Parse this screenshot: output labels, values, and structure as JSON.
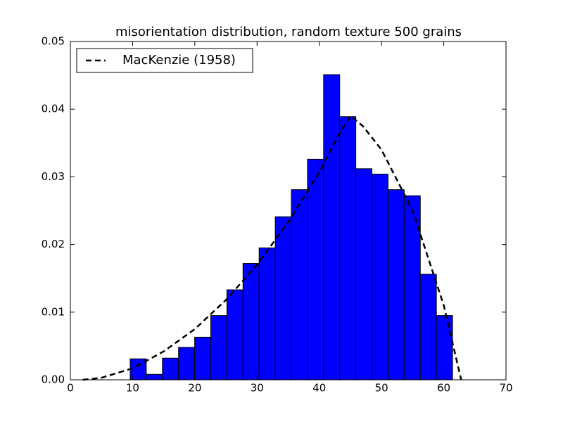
{
  "chart_data": {
    "type": "histogram",
    "title": "misorientation distribution, random texture 500 grains",
    "bins": [
      9.61,
      12.2,
      14.79,
      17.38,
      19.97,
      22.56,
      25.15,
      27.74,
      30.33,
      32.92,
      35.51,
      38.1,
      40.69,
      43.28,
      45.87,
      48.46,
      51.05,
      53.64,
      56.23,
      58.82,
      61.41
    ],
    "values": [
      0.0031,
      0.0008,
      0.0032,
      0.0048,
      0.0063,
      0.0095,
      0.0133,
      0.0172,
      0.0195,
      0.0241,
      0.0281,
      0.0326,
      0.0451,
      0.0389,
      0.0312,
      0.0304,
      0.0281,
      0.0272,
      0.0156,
      0.0095
    ],
    "color": "#0000ff",
    "lines": [
      {
        "name": "MacKenzie (1958)",
        "color": "#000000",
        "dashed": true,
        "x": [
          2,
          5,
          10,
          15,
          20,
          25,
          30,
          35,
          40,
          43,
          45,
          47,
          50,
          55,
          60,
          62.8
        ],
        "values": [
          0,
          0.0003,
          0.0017,
          0.0042,
          0.0075,
          0.0118,
          0.017,
          0.0233,
          0.0307,
          0.036,
          0.039,
          0.0375,
          0.034,
          0.025,
          0.011,
          0
        ]
      }
    ],
    "xlim": [
      0,
      70
    ],
    "xticks": [
      0,
      10,
      20,
      30,
      40,
      50,
      60,
      70
    ],
    "ylim": [
      0,
      0.05
    ],
    "yticks": [
      {
        "value": 0,
        "label": "0.00"
      },
      0.01,
      0.02,
      0.03,
      0.04,
      0.05
    ],
    "legend": "upper left"
  }
}
